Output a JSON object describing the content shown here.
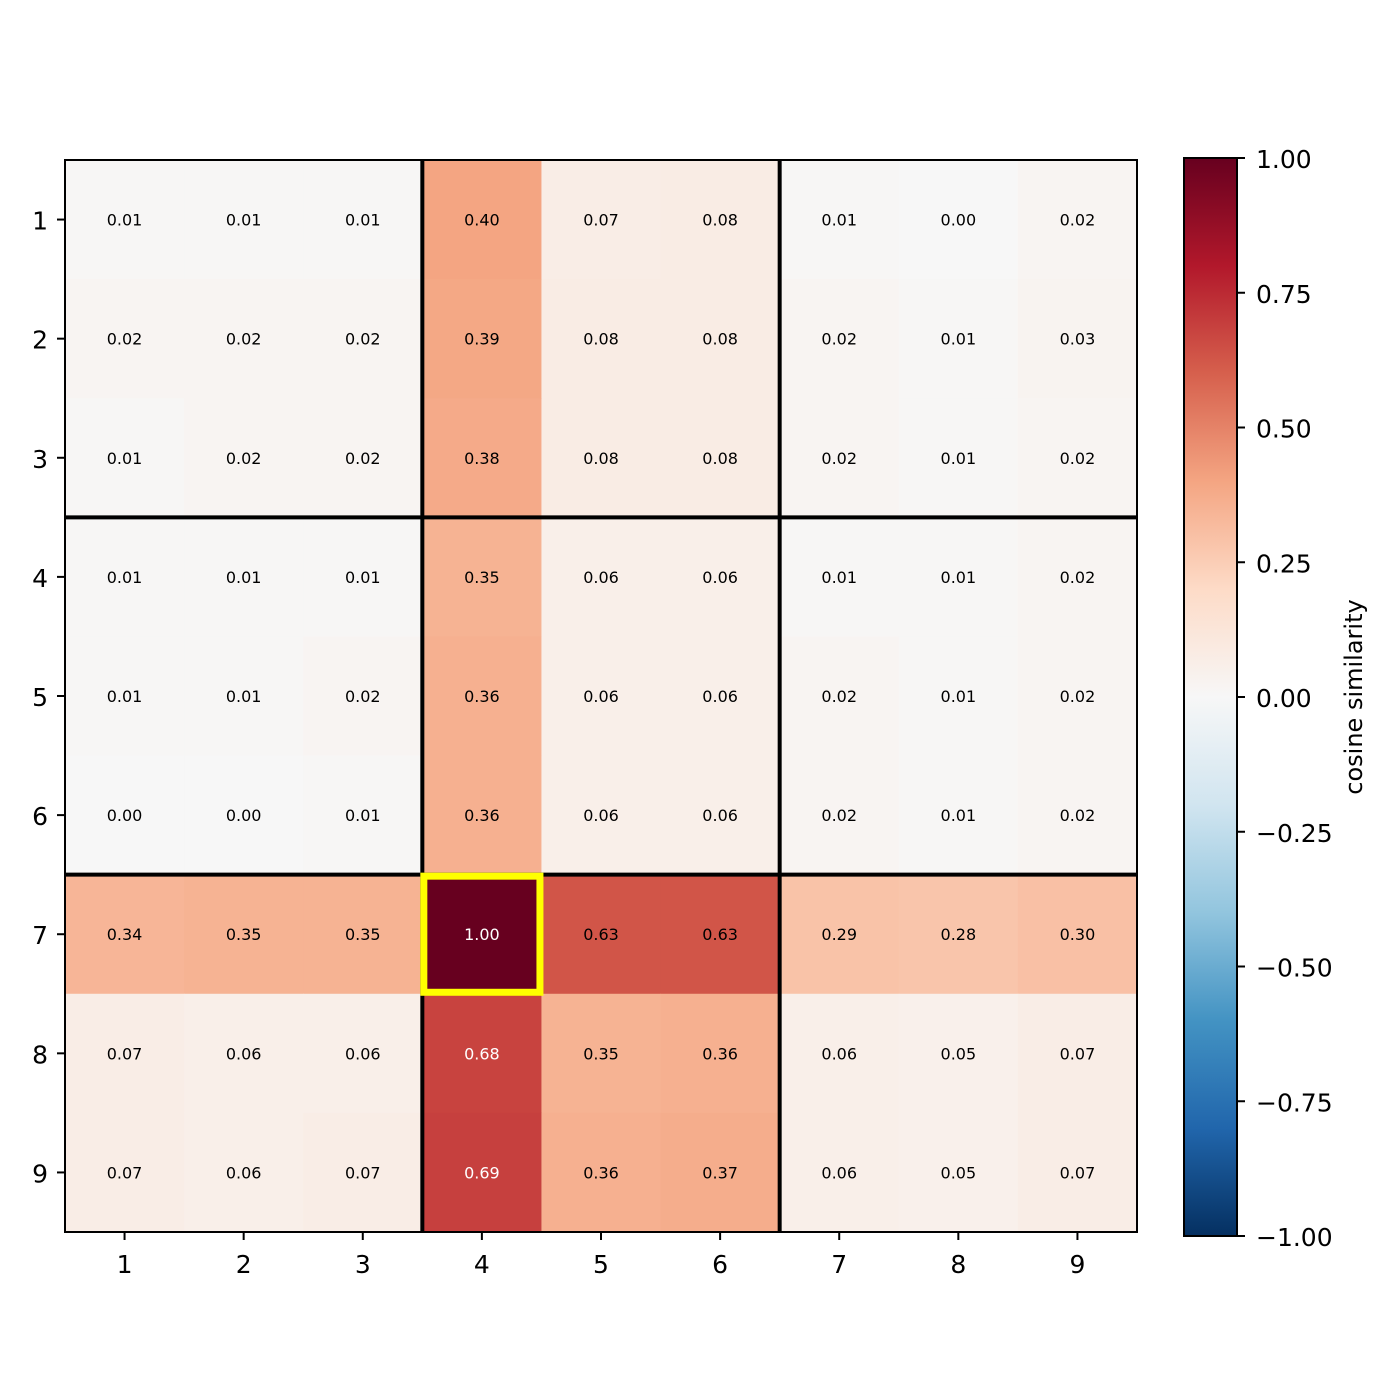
{
  "chart_data": {
    "type": "heatmap",
    "x_tick_labels": [
      "1",
      "2",
      "3",
      "4",
      "5",
      "6",
      "7",
      "8",
      "9"
    ],
    "y_tick_labels": [
      "1",
      "2",
      "3",
      "4",
      "5",
      "6",
      "7",
      "8",
      "9"
    ],
    "values": [
      [
        0.01,
        0.01,
        0.01,
        0.4,
        0.07,
        0.08,
        0.01,
        0.0,
        0.02
      ],
      [
        0.02,
        0.02,
        0.02,
        0.39,
        0.08,
        0.08,
        0.02,
        0.01,
        0.03
      ],
      [
        0.01,
        0.02,
        0.02,
        0.38,
        0.08,
        0.08,
        0.02,
        0.01,
        0.02
      ],
      [
        0.01,
        0.01,
        0.01,
        0.35,
        0.06,
        0.06,
        0.01,
        0.01,
        0.02
      ],
      [
        0.01,
        0.01,
        0.02,
        0.36,
        0.06,
        0.06,
        0.02,
        0.01,
        0.02
      ],
      [
        0.0,
        0.0,
        0.01,
        0.36,
        0.06,
        0.06,
        0.02,
        0.01,
        0.02
      ],
      [
        0.34,
        0.35,
        0.35,
        1.0,
        0.63,
        0.63,
        0.29,
        0.28,
        0.3
      ],
      [
        0.07,
        0.06,
        0.06,
        0.68,
        0.35,
        0.36,
        0.06,
        0.05,
        0.07
      ],
      [
        0.07,
        0.06,
        0.07,
        0.69,
        0.36,
        0.37,
        0.06,
        0.05,
        0.07
      ]
    ],
    "value_format": "0.00",
    "colormap": "RdBu_r",
    "vmin": -1.0,
    "vmax": 1.0,
    "colorbar": {
      "label": "cosine similarity",
      "ticks": [
        1.0,
        0.75,
        0.5,
        0.25,
        0.0,
        -0.25,
        -0.5,
        -0.75,
        -1.0
      ],
      "tick_labels": [
        "1.00",
        "0.75",
        "0.50",
        "0.25",
        "0.00",
        "−0.25",
        "−0.50",
        "−0.75",
        "−1.00"
      ]
    },
    "group_boundaries_after_index": [
      3,
      6
    ],
    "highlight_cell": {
      "row": 7,
      "col": 4,
      "color": "#ffff00"
    }
  }
}
